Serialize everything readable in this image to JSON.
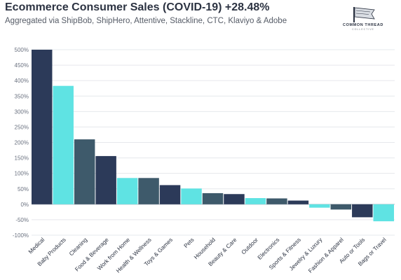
{
  "header": {
    "title": "Ecommerce Consumer Sales (COVID-19) +28.48%",
    "subtitle": "Aggregated via ShipBob, ShipHero, Attentive, Stackline, CTC, Klaviyo & Adobe"
  },
  "logo": {
    "name": "COMMON THREAD",
    "sub": "COLLECTIVE",
    "icon": "flag-icon"
  },
  "chart_data": {
    "type": "bar",
    "title": "Ecommerce Consumer Sales (COVID-19) +28.48%",
    "subtitle": "Aggregated via ShipBob, ShipHero, Attentive, Stackline, CTC, Klaviyo & Adobe",
    "xlabel": "",
    "ylabel": "",
    "ylim": [
      -100,
      500
    ],
    "yticks": [
      500,
      450,
      400,
      350,
      300,
      250,
      200,
      150,
      100,
      50,
      0,
      -50,
      -100
    ],
    "ytick_labels": [
      "500%",
      "450%",
      "400%",
      "350%",
      "300%",
      "250%",
      "200%",
      "150%",
      "100%",
      "50%",
      "0%",
      "-50%",
      "-100%"
    ],
    "grid": true,
    "legend": "none",
    "categories": [
      "Medical",
      "Baby Products",
      "Cleaning",
      "Food & Beverage",
      "Work from Home",
      "Health & Wellness",
      "Toys & Games",
      "Pets",
      "Household",
      "Beauty & Care",
      "Outdoor",
      "Electronics",
      "Sports & Fitness",
      "Jewelry & Luxury",
      "Fashion & Apparel",
      "Auto or Tools",
      "Bags or Travel"
    ],
    "values": [
      500,
      383,
      210,
      156,
      85,
      85,
      62,
      51,
      36,
      33,
      20,
      19,
      12,
      -11,
      -17,
      -42,
      -55
    ],
    "colors": [
      "#2c3a59",
      "#5fe3e3",
      "#3e5a6b",
      "#2c3a59",
      "#5fe3e3",
      "#3e5a6b",
      "#2c3a59",
      "#5fe3e3",
      "#3e5a6b",
      "#2c3a59",
      "#5fe3e3",
      "#3e5a6b",
      "#2c3a59",
      "#5fe3e3",
      "#3e5a6b",
      "#2c3a59",
      "#5fe3e3"
    ]
  }
}
